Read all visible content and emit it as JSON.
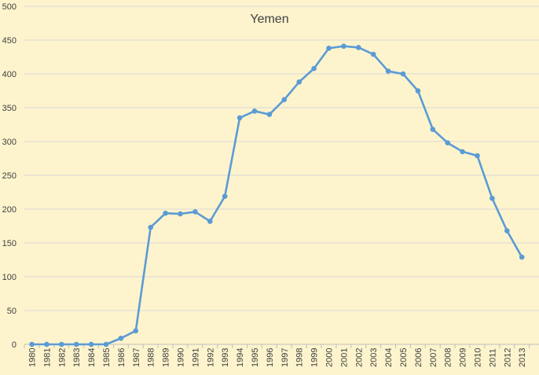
{
  "chart_data": {
    "type": "line",
    "title": "Yemen",
    "xlabel": "",
    "ylabel": "",
    "ylim": [
      0,
      500
    ],
    "yticks": [
      0,
      50,
      100,
      150,
      200,
      250,
      300,
      350,
      400,
      450,
      500
    ],
    "grid": true,
    "legend": "none",
    "categories": [
      "1980",
      "1981",
      "1982",
      "1983",
      "1984",
      "1985",
      "1986",
      "1987",
      "1988",
      "1989",
      "1990",
      "1991",
      "1992",
      "1993",
      "1994",
      "1995",
      "1996",
      "1997",
      "1998",
      "1999",
      "2000",
      "2001",
      "2002",
      "2003",
      "2004",
      "2005",
      "2006",
      "2007",
      "2008",
      "2009",
      "2010",
      "2011",
      "2012",
      "2013"
    ],
    "series": [
      {
        "color": "#5b9bd5",
        "values": [
          0,
          0,
          0,
          0,
          0,
          0,
          9,
          20,
          173,
          194,
          193,
          196,
          182,
          219,
          335,
          345,
          340,
          362,
          388,
          408,
          438,
          441,
          439,
          429,
          404,
          400,
          375,
          318,
          298,
          285,
          279,
          216,
          168,
          129
        ]
      }
    ]
  }
}
